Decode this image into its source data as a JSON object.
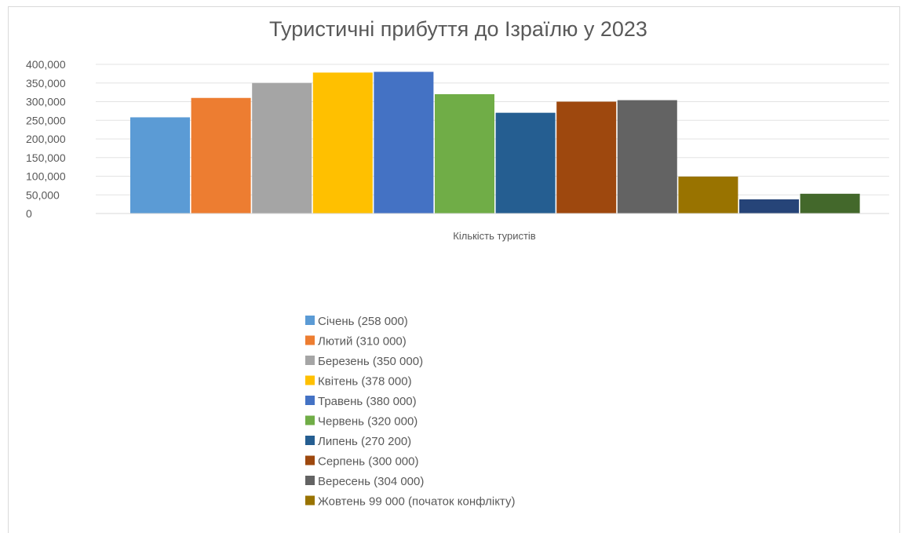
{
  "chart_data": {
    "type": "bar",
    "title": "Туристичні прибуття до Ізраїлю у 2023",
    "xlabel": "Кількість туристів",
    "ylabel": "",
    "ylim": [
      0,
      400000
    ],
    "y_ticks": [
      "0",
      "50,000",
      "100,000",
      "150,000",
      "200,000",
      "250,000",
      "300,000",
      "350,000",
      "400,000"
    ],
    "grid": true,
    "legend_position": "bottom",
    "categories": [
      "Кількість туристів"
    ],
    "series": [
      {
        "name": "Січень (258 000)",
        "values": [
          258000
        ],
        "color": "#5b9bd5"
      },
      {
        "name": "Лютий (310 000)",
        "values": [
          310000
        ],
        "color": "#ed7d31"
      },
      {
        "name": "Березень (350 000)",
        "values": [
          350000
        ],
        "color": "#a5a5a5"
      },
      {
        "name": "Квітень (378 000)",
        "values": [
          378000
        ],
        "color": "#ffc000"
      },
      {
        "name": "Травень (380 000)",
        "values": [
          380000
        ],
        "color": "#4472c4"
      },
      {
        "name": "Червень (320 000)",
        "values": [
          320000
        ],
        "color": "#70ad47"
      },
      {
        "name": "Липень (270 200)",
        "values": [
          270200
        ],
        "color": "#255e91"
      },
      {
        "name": "Серпень (300 000)",
        "values": [
          300000
        ],
        "color": "#9e480e"
      },
      {
        "name": "Вересень (304 000)",
        "values": [
          304000
        ],
        "color": "#636363"
      },
      {
        "name": "Жовтень 99 000 (початок конфлікту)",
        "values": [
          99000
        ],
        "color": "#997300"
      },
      {
        "name": "",
        "values": [
          38000
        ],
        "color": "#264478"
      },
      {
        "name": "",
        "values": [
          53000
        ],
        "color": "#43682b"
      }
    ]
  }
}
